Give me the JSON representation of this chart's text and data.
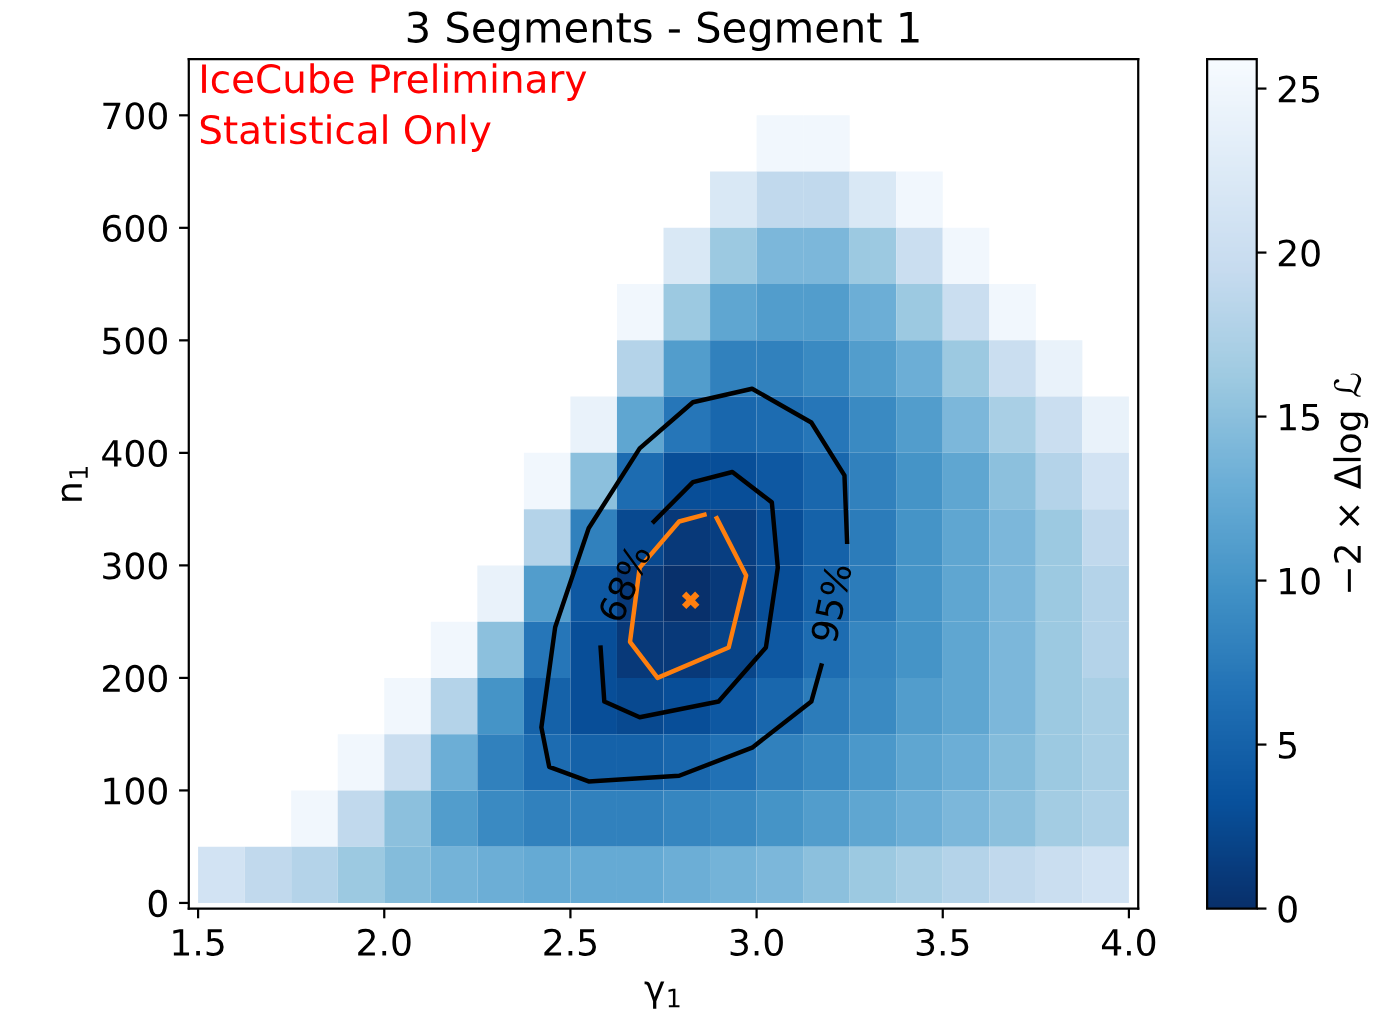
{
  "chart_data": {
    "type": "heatmap",
    "title": "3 Segments - Segment 1",
    "xlabel": "γ$_{1}$",
    "ylabel": "n$_{1}$",
    "clabel": "−2 × Δlog ℒ",
    "x": [
      1.5625,
      1.6875,
      1.8125,
      1.9375,
      2.0625,
      2.1875,
      2.3125,
      2.4375,
      2.5625,
      2.6875,
      2.8125,
      2.9375,
      3.0625,
      3.1875,
      3.3125,
      3.4375,
      3.5625,
      3.6875,
      3.8125,
      3.9375
    ],
    "y": [
      675,
      625,
      575,
      525,
      475,
      425,
      375,
      325,
      275,
      225,
      175,
      125,
      75,
      25
    ],
    "cells": [
      [
        null,
        null,
        null,
        null,
        null,
        null,
        null,
        null,
        null,
        null,
        null,
        null,
        25,
        25,
        null,
        null,
        null,
        null,
        null,
        null
      ],
      [
        null,
        null,
        null,
        null,
        null,
        null,
        null,
        null,
        null,
        null,
        null,
        22,
        19,
        19,
        22,
        25,
        null,
        null,
        null,
        null
      ],
      [
        null,
        null,
        null,
        null,
        null,
        null,
        null,
        null,
        null,
        null,
        22,
        16,
        14,
        14,
        16,
        20,
        25,
        null,
        null,
        null
      ],
      [
        null,
        null,
        null,
        null,
        null,
        null,
        null,
        null,
        null,
        25,
        16,
        12,
        11,
        11,
        13,
        16,
        20,
        25,
        null,
        null
      ],
      [
        null,
        null,
        null,
        null,
        null,
        null,
        null,
        null,
        null,
        18,
        11,
        8,
        8,
        9,
        11,
        13,
        16,
        20,
        24,
        null
      ],
      [
        null,
        null,
        null,
        null,
        null,
        null,
        null,
        null,
        24,
        12,
        7,
        5.5,
        6,
        7,
        9,
        11,
        14,
        17,
        20,
        24
      ],
      [
        null,
        null,
        null,
        null,
        null,
        null,
        null,
        25,
        15,
        6,
        3,
        3,
        4,
        5.5,
        8,
        10,
        12,
        15,
        18,
        21
      ],
      [
        null,
        null,
        null,
        null,
        null,
        null,
        null,
        18,
        8,
        2.5,
        1,
        1.5,
        3,
        5,
        7.5,
        10,
        12,
        14,
        16,
        19
      ],
      [
        null,
        null,
        null,
        null,
        null,
        null,
        24,
        11,
        4,
        1,
        0,
        1,
        3,
        5,
        7.5,
        10,
        12,
        14,
        16,
        18
      ],
      [
        null,
        null,
        null,
        null,
        null,
        25,
        15,
        7,
        3,
        1,
        1,
        2,
        4,
        6,
        8.5,
        10,
        12,
        14,
        16,
        18
      ],
      [
        null,
        null,
        null,
        null,
        25,
        18,
        10,
        5,
        3,
        2.5,
        3,
        4,
        5.5,
        7.5,
        9,
        11,
        12,
        14,
        16,
        17
      ],
      [
        null,
        null,
        null,
        25,
        20,
        13,
        8,
        6,
        5,
        5,
        5.5,
        6.5,
        8,
        9,
        10.5,
        12,
        13,
        14.5,
        16,
        17
      ],
      [
        null,
        null,
        25,
        19,
        15,
        11,
        9,
        8,
        8,
        8,
        8.5,
        9,
        10,
        11,
        12,
        13,
        14,
        15,
        16.5,
        17.5
      ],
      [
        21,
        19,
        18,
        16,
        14.5,
        13.5,
        13,
        12.5,
        12.5,
        12.5,
        13,
        13.5,
        14,
        15,
        16,
        17,
        18,
        19,
        20,
        21
      ]
    ],
    "clim": [
      0,
      25.9
    ],
    "cticks": [
      0,
      5,
      10,
      15,
      20,
      25
    ],
    "xlim": [
      1.475,
      4.025
    ],
    "ylim": [
      -5,
      750
    ],
    "xticks": [
      {
        "value": 1.5,
        "label": "1.5"
      },
      {
        "value": 2,
        "label": "2.0"
      },
      {
        "value": 2.5,
        "label": "2.5"
      },
      {
        "value": 3,
        "label": "3.0"
      },
      {
        "value": 3.5,
        "label": "3.5"
      },
      {
        "value": 4,
        "label": "4.0"
      }
    ],
    "yticks": [
      0,
      100,
      200,
      300,
      400,
      500,
      600,
      700
    ],
    "series": [
      {
        "type": "line",
        "color": "#000000",
        "x": [
          2.724,
          2.829,
          2.935,
          3.041,
          3.057,
          3.025,
          2.898,
          2.686,
          2.591,
          2.581
        ],
        "values": [
          339,
          374,
          383,
          356,
          298,
          227,
          179,
          165,
          179,
          227
        ]
      },
      {
        "type": "line",
        "color": "#000000",
        "x": [
          3.243,
          3.236,
          3.147,
          2.988,
          2.829,
          2.686,
          2.549,
          2.459,
          2.422,
          2.443,
          2.549,
          2.792,
          2.988,
          3.147,
          3.174
        ],
        "values": [
          321,
          380,
          427,
          457,
          445,
          404,
          333,
          245,
          156,
          121,
          108,
          113,
          138,
          179,
          211
        ]
      },
      {
        "type": "line",
        "color": "#ff7f0e",
        "x": [
          2.893,
          2.972,
          2.925,
          2.734,
          2.66,
          2.686,
          2.792,
          2.86
        ],
        "values": [
          342,
          291,
          227,
          200,
          232,
          298,
          339,
          345
        ]
      },
      {
        "type": "scatter",
        "color": "#ff7f0e",
        "marker": "cross",
        "x": [
          2.823
        ],
        "values": [
          269
        ]
      }
    ],
    "annotations": [
      "IceCube Preliminary",
      "Statistical Only",
      "68%",
      "95%"
    ]
  }
}
